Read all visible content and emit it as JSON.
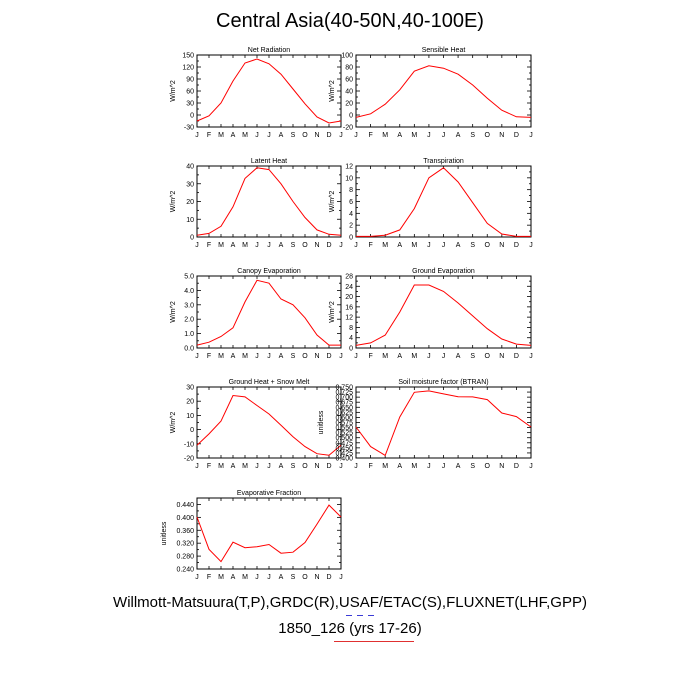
{
  "page": {
    "title": "Central Asia(40-50N,40-100E)",
    "footer_line1": "Willmott-Matsuura(T,P),GRDC(R),USAF/ETAC(S),FLUXNET(LHF,GPP)",
    "footer_line2": "1850_126 (yrs 17-26)"
  },
  "colors": {
    "line": "#ff0000",
    "axis": "#000000",
    "decor_blue": "#3b3bd6",
    "decor_red": "#e03030"
  },
  "chart_data": [
    {
      "type": "line",
      "title": "Net Radiation",
      "ylabel": "W/m^2",
      "categories": [
        "J",
        "F",
        "M",
        "A",
        "M",
        "J",
        "J",
        "A",
        "S",
        "O",
        "N",
        "D",
        "J"
      ],
      "values": [
        -15,
        -2,
        30,
        85,
        130,
        140,
        128,
        102,
        65,
        28,
        -5,
        -20,
        -15
      ],
      "ylim": [
        -30,
        150
      ],
      "yticks": [
        -30,
        -15,
        0,
        15,
        30,
        45,
        60,
        75,
        90,
        105,
        120,
        135,
        150
      ],
      "yticklabels": [
        "-30",
        "",
        "0",
        "",
        "30",
        "",
        "60",
        "",
        "90",
        "",
        "120",
        "",
        "150"
      ]
    },
    {
      "type": "line",
      "title": "Sensible Heat",
      "ylabel": "W/m^2",
      "categories": [
        "J",
        "F",
        "M",
        "A",
        "M",
        "J",
        "J",
        "A",
        "S",
        "O",
        "N",
        "D",
        "J"
      ],
      "values": [
        -4,
        2,
        18,
        42,
        73,
        82,
        78,
        68,
        50,
        28,
        8,
        -3,
        -4
      ],
      "ylim": [
        -20,
        100
      ],
      "yticks": [
        -20,
        -10,
        0,
        10,
        20,
        30,
        40,
        50,
        60,
        70,
        80,
        90,
        100
      ],
      "yticklabels": [
        "-20",
        "",
        "0",
        "",
        "20",
        "",
        "40",
        "",
        "60",
        "",
        "80",
        "",
        "100"
      ]
    },
    {
      "type": "line",
      "title": "Latent Heat",
      "ylabel": "W/m^2",
      "categories": [
        "J",
        "F",
        "M",
        "A",
        "M",
        "J",
        "J",
        "A",
        "S",
        "O",
        "N",
        "D",
        "J"
      ],
      "values": [
        1,
        2,
        6,
        17,
        33,
        39,
        38,
        30,
        20,
        11,
        4,
        1.5,
        1
      ],
      "ylim": [
        0,
        40
      ],
      "yticks": [
        0,
        5,
        10,
        15,
        20,
        25,
        30,
        35,
        40
      ],
      "yticklabels": [
        "0",
        "",
        "10",
        "",
        "20",
        "",
        "30",
        "",
        "40"
      ]
    },
    {
      "type": "line",
      "title": "Transpiration",
      "ylabel": "W/m^2",
      "categories": [
        "J",
        "F",
        "M",
        "A",
        "M",
        "J",
        "J",
        "A",
        "S",
        "O",
        "N",
        "D",
        "J"
      ],
      "values": [
        0.1,
        0.1,
        0.3,
        1.2,
        4.8,
        10,
        11.7,
        9.3,
        5.8,
        2.3,
        0.5,
        0.1,
        0.1
      ],
      "ylim": [
        0,
        12
      ],
      "yticks": [
        0,
        1,
        2,
        3,
        4,
        5,
        6,
        7,
        8,
        9,
        10,
        11,
        12
      ],
      "yticklabels": [
        "0",
        "",
        "2",
        "",
        "4",
        "",
        "6",
        "",
        "8",
        "",
        "10",
        "",
        "12"
      ]
    },
    {
      "type": "line",
      "title": "Canopy Evaporation",
      "ylabel": "W/m^2",
      "categories": [
        "J",
        "F",
        "M",
        "A",
        "M",
        "J",
        "J",
        "A",
        "S",
        "O",
        "N",
        "D",
        "J"
      ],
      "values": [
        0.2,
        0.4,
        0.8,
        1.4,
        3.2,
        4.7,
        4.5,
        3.4,
        3.0,
        2.1,
        0.9,
        0.2,
        0.2
      ],
      "ylim": [
        0,
        5
      ],
      "yticks": [
        0,
        0.5,
        1,
        1.5,
        2,
        2.5,
        3,
        3.5,
        4,
        4.5,
        5
      ],
      "yticklabels": [
        "0.0",
        "",
        "1.0",
        "",
        "2.0",
        "",
        "3.0",
        "",
        "4.0",
        "",
        "5.0"
      ]
    },
    {
      "type": "line",
      "title": "Ground Evaporation",
      "ylabel": "W/m^2",
      "categories": [
        "J",
        "F",
        "M",
        "A",
        "M",
        "J",
        "J",
        "A",
        "S",
        "O",
        "N",
        "D",
        "J"
      ],
      "values": [
        1,
        2,
        5,
        14,
        24.5,
        24.5,
        22,
        17.5,
        12.5,
        7.5,
        3.5,
        1.5,
        1
      ],
      "ylim": [
        0,
        28
      ],
      "yticks": [
        0,
        2,
        4,
        6,
        8,
        10,
        12,
        14,
        16,
        18,
        20,
        22,
        24,
        26,
        28
      ],
      "yticklabels": [
        "0",
        "",
        "4",
        "",
        "8",
        "",
        "12",
        "",
        "16",
        "",
        "20",
        "",
        "24",
        "",
        "28"
      ]
    },
    {
      "type": "line",
      "title": "Ground Heat + Snow Melt",
      "ylabel": "W/m^2",
      "categories": [
        "J",
        "F",
        "M",
        "A",
        "M",
        "J",
        "J",
        "A",
        "S",
        "O",
        "N",
        "D",
        "J"
      ],
      "values": [
        -11,
        -3,
        6,
        24,
        23,
        17,
        11,
        3,
        -5,
        -12,
        -17,
        -18,
        -11
      ],
      "ylim": [
        -20,
        30
      ],
      "yticks": [
        -20,
        -15,
        -10,
        -5,
        0,
        5,
        10,
        15,
        20,
        25,
        30
      ],
      "yticklabels": [
        "-20",
        "",
        "-10",
        "",
        "0",
        "",
        "10",
        "",
        "20",
        "",
        "30"
      ]
    },
    {
      "type": "line",
      "title": "Soil moisture factor (BTRAN)",
      "ylabel": "unitless",
      "categories": [
        "J",
        "F",
        "M",
        "A",
        "M",
        "J",
        "J",
        "A",
        "S",
        "O",
        "N",
        "D",
        "J"
      ],
      "values": [
        0.553,
        0.456,
        0.413,
        0.602,
        0.724,
        0.731,
        0.716,
        0.702,
        0.701,
        0.688,
        0.622,
        0.604,
        0.553
      ],
      "ylim": [
        0.4,
        0.75
      ],
      "yticks": [
        0.4,
        0.425,
        0.45,
        0.475,
        0.5,
        0.525,
        0.55,
        0.575,
        0.6,
        0.625,
        0.65,
        0.675,
        0.7,
        0.725,
        0.75
      ],
      "yticklabels": [
        "0.400",
        "0.425",
        "0.450",
        "0.475",
        "0.500",
        "0.525",
        "0.550",
        "0.575",
        "0.600",
        "0.625",
        "0.650",
        "0.675",
        "0.700",
        "0.725",
        "0.750"
      ]
    },
    {
      "type": "line",
      "title": "Evaporative Fraction",
      "ylabel": "unitless",
      "categories": [
        "J",
        "F",
        "M",
        "A",
        "M",
        "J",
        "J",
        "A",
        "S",
        "O",
        "N",
        "D",
        "J"
      ],
      "values": [
        0.401,
        0.301,
        0.263,
        0.323,
        0.306,
        0.309,
        0.316,
        0.289,
        0.292,
        0.322,
        0.379,
        0.438,
        0.401
      ],
      "ylim": [
        0.24,
        0.46
      ],
      "yticks": [
        0.24,
        0.26,
        0.28,
        0.3,
        0.32,
        0.34,
        0.36,
        0.38,
        0.4,
        0.42,
        0.44
      ],
      "yticklabels": [
        "0.240",
        "",
        "0.280",
        "",
        "0.320",
        "",
        "0.360",
        "",
        "0.400",
        "",
        "0.440"
      ]
    }
  ]
}
